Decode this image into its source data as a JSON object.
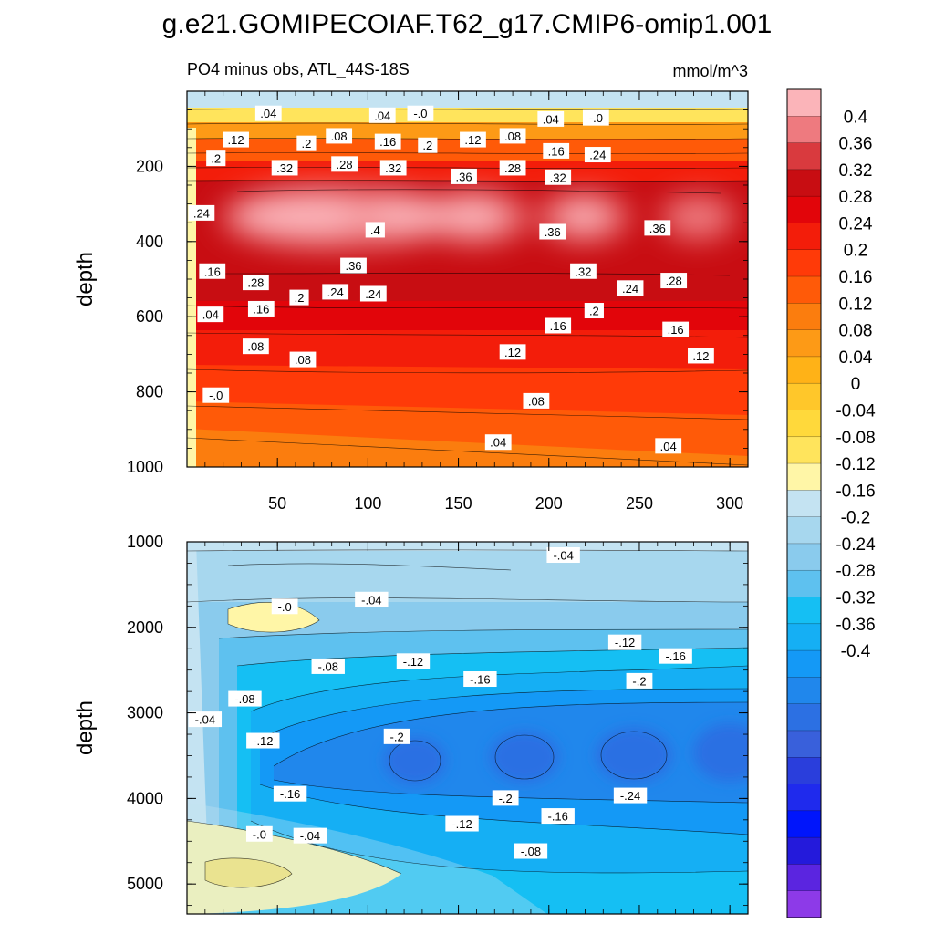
{
  "chart_data": {
    "type": "contour",
    "title": "g.e21.GOMIPECOIAF.T62_g17.CMIP6-omip1.001",
    "subtitle_left": "PO4 minus obs, ATL_44S-18S",
    "units": "mmol/m^3",
    "variable": "PO4 minus obs",
    "region": "ATL_44S-18S",
    "colorbar": {
      "levels": [
        "0.4",
        "0.36",
        "0.32",
        "0.28",
        "0.24",
        "0.2",
        "0.16",
        "0.12",
        "0.08",
        "0.04",
        "0",
        "-0.04",
        "-0.08",
        "-0.12",
        "-0.16",
        "-0.2",
        "-0.24",
        "-0.28",
        "-0.32",
        "-0.36",
        "-0.4"
      ],
      "colors": [
        "#fbb4b9",
        "#ee7a7f",
        "#d93a3e",
        "#c80d12",
        "#e2050a",
        "#f31d0a",
        "#ff3a08",
        "#ff5a08",
        "#fb7d0e",
        "#fd9a16",
        "#ffb217",
        "#ffc72a",
        "#ffd93b",
        "#ffe45c",
        "#fff6a7",
        "#c4e3f2",
        "#a7d7ee",
        "#8acbed",
        "#5ec1ef",
        "#15bff3",
        "#15aff4",
        "#1499f6",
        "#2087ec",
        "#2c70e3",
        "#3960db",
        "#2a3edc",
        "#1f2aed",
        "#0015fb",
        "#241adb",
        "#5b25e0",
        "#8d3ae8"
      ]
    },
    "panels": [
      {
        "id": "upper",
        "xlabel": "",
        "ylabel": "depth",
        "xlim": [
          0,
          310
        ],
        "ylim": [
          0,
          1000
        ],
        "y_inverted": true,
        "xticks": [
          50,
          100,
          150,
          200,
          250,
          300
        ],
        "yticks": [
          200,
          400,
          600,
          800,
          1000
        ],
        "contour_labels": [
          {
            "text": ".04",
            "x": 45,
            "y": 60
          },
          {
            "text": ".04",
            "x": 108,
            "y": 65
          },
          {
            "text": "-.0",
            "x": 129,
            "y": 60
          },
          {
            "text": ".04",
            "x": 201,
            "y": 75
          },
          {
            "text": "-.0",
            "x": 226,
            "y": 72
          },
          {
            "text": ".12",
            "x": 27,
            "y": 130
          },
          {
            "text": ".2",
            "x": 66,
            "y": 140
          },
          {
            "text": ".08",
            "x": 84,
            "y": 120
          },
          {
            "text": ".16",
            "x": 111,
            "y": 135
          },
          {
            "text": ".2",
            "x": 133,
            "y": 145
          },
          {
            "text": ".12",
            "x": 158,
            "y": 130
          },
          {
            "text": ".08",
            "x": 180,
            "y": 120
          },
          {
            "text": ".16",
            "x": 204,
            "y": 160
          },
          {
            "text": ".24",
            "x": 227,
            "y": 170
          },
          {
            "text": ".2",
            "x": 16,
            "y": 180
          },
          {
            "text": ".32",
            "x": 54,
            "y": 205
          },
          {
            "text": ".28",
            "x": 87,
            "y": 195
          },
          {
            "text": ".32",
            "x": 114,
            "y": 205
          },
          {
            "text": ".28",
            "x": 180,
            "y": 205
          },
          {
            "text": ".32",
            "x": 205,
            "y": 230
          },
          {
            "text": ".36",
            "x": 153,
            "y": 228
          },
          {
            "text": ".24",
            "x": 8,
            "y": 325
          },
          {
            "text": ".4",
            "x": 104,
            "y": 370
          },
          {
            "text": ".36",
            "x": 202,
            "y": 375
          },
          {
            "text": ".36",
            "x": 260,
            "y": 365
          },
          {
            "text": ".16",
            "x": 14,
            "y": 480
          },
          {
            "text": ".36",
            "x": 92,
            "y": 465
          },
          {
            "text": ".32",
            "x": 219,
            "y": 480
          },
          {
            "text": ".28",
            "x": 38,
            "y": 510
          },
          {
            "text": ".24",
            "x": 82,
            "y": 535
          },
          {
            "text": ".24",
            "x": 103,
            "y": 540
          },
          {
            "text": ".2",
            "x": 62,
            "y": 550
          },
          {
            "text": ".16",
            "x": 41,
            "y": 580
          },
          {
            "text": ".24",
            "x": 245,
            "y": 525
          },
          {
            "text": ".28",
            "x": 269,
            "y": 505
          },
          {
            "text": ".04",
            "x": 13,
            "y": 595
          },
          {
            "text": ".2",
            "x": 225,
            "y": 585
          },
          {
            "text": ".16",
            "x": 205,
            "y": 625
          },
          {
            "text": ".16",
            "x": 270,
            "y": 635
          },
          {
            "text": ".08",
            "x": 38,
            "y": 680
          },
          {
            "text": ".08",
            "x": 64,
            "y": 715
          },
          {
            "text": ".12",
            "x": 180,
            "y": 695
          },
          {
            "text": ".12",
            "x": 284,
            "y": 705
          },
          {
            "text": "-.0",
            "x": 16,
            "y": 810
          },
          {
            "text": ".08",
            "x": 193,
            "y": 825
          },
          {
            "text": ".04",
            "x": 172,
            "y": 935
          },
          {
            "text": ".04",
            "x": 266,
            "y": 945
          }
        ]
      },
      {
        "id": "lower",
        "xlabel": "",
        "ylabel": "depth",
        "xlim": [
          0,
          310
        ],
        "ylim": [
          1000,
          5350
        ],
        "y_inverted": true,
        "xticks": [],
        "yticks": [
          1000,
          2000,
          3000,
          4000,
          5000
        ],
        "contour_labels": [
          {
            "text": "-.04",
            "x": 208,
            "y": 1160
          },
          {
            "text": "-.0",
            "x": 54,
            "y": 1760
          },
          {
            "text": "-.04",
            "x": 102,
            "y": 1680
          },
          {
            "text": "-.08",
            "x": 78,
            "y": 2460
          },
          {
            "text": "-.12",
            "x": 125,
            "y": 2400
          },
          {
            "text": "-.16",
            "x": 162,
            "y": 2610
          },
          {
            "text": "-.12",
            "x": 242,
            "y": 2180
          },
          {
            "text": "-.16",
            "x": 270,
            "y": 2340
          },
          {
            "text": "-.2",
            "x": 250,
            "y": 2630
          },
          {
            "text": "-.08",
            "x": 32,
            "y": 2840
          },
          {
            "text": "-.04",
            "x": 10,
            "y": 3080
          },
          {
            "text": "-.12",
            "x": 42,
            "y": 3330
          },
          {
            "text": "-.2",
            "x": 116,
            "y": 3280
          },
          {
            "text": "-.16",
            "x": 57,
            "y": 3950
          },
          {
            "text": "-.2",
            "x": 176,
            "y": 4000
          },
          {
            "text": "-.24",
            "x": 245,
            "y": 3970
          },
          {
            "text": "-.12",
            "x": 152,
            "y": 4300
          },
          {
            "text": "-.16",
            "x": 205,
            "y": 4210
          },
          {
            "text": "-.0",
            "x": 40,
            "y": 4420
          },
          {
            "text": "-.04",
            "x": 68,
            "y": 4440
          },
          {
            "text": "-.08",
            "x": 190,
            "y": 4620
          }
        ]
      }
    ]
  }
}
